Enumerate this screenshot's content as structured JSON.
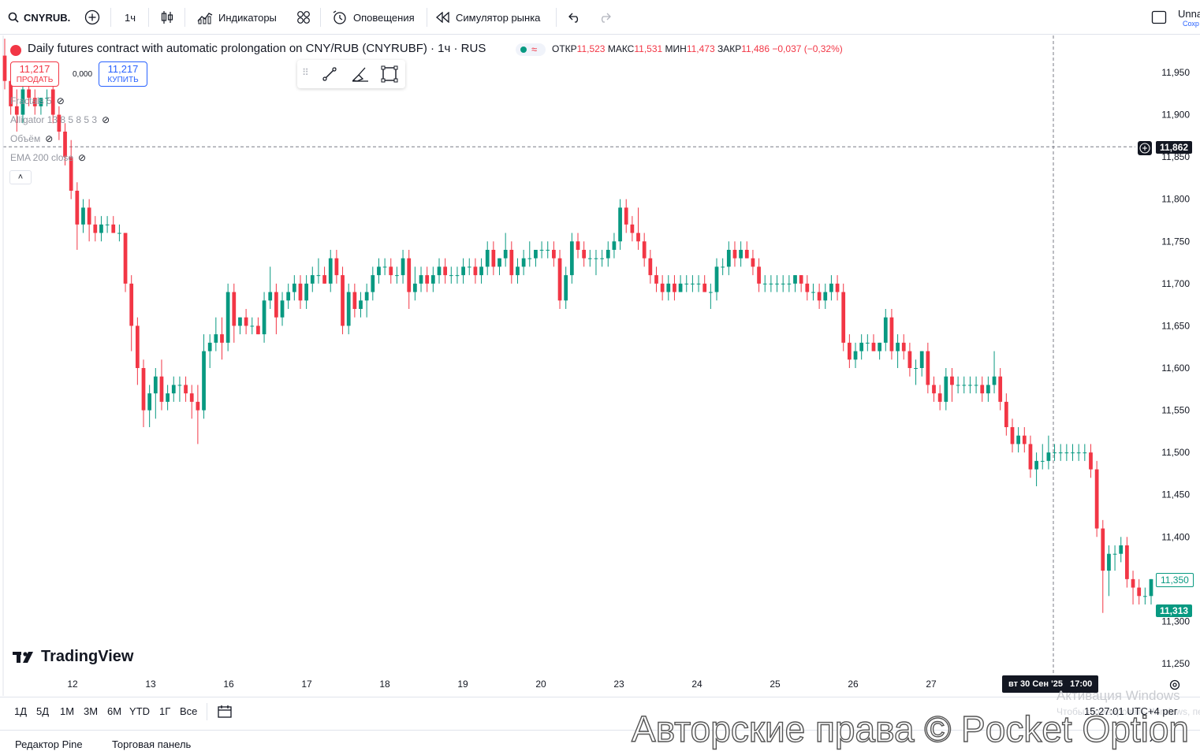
{
  "toolbar": {
    "symbol": "CNYRUB.",
    "interval": "1ч",
    "indicators": "Индикаторы",
    "alerts": "Оповещения",
    "replay": "Симулятор рынка",
    "layout_name": "Unna",
    "layout_save": "Сохр"
  },
  "legend": {
    "title": "Daily futures contract with automatic prolongation on CNY/RUB (CNYRUBF) · 1ч · RUS",
    "open_label": "ОТКР",
    "open": "11,523",
    "high_label": "МАКС",
    "high": "11,531",
    "low_label": "МИН",
    "low": "11,473",
    "close_label": "ЗАКР",
    "close": "11,486",
    "change": "−0,037 (−0,32%)"
  },
  "trade": {
    "sell_price": "11,217",
    "sell_label": "ПРОДАТЬ",
    "buy_price": "11,217",
    "buy_label": "КУПИТЬ",
    "spread": "0,000"
  },
  "indicators": [
    {
      "name": "Fractals 5"
    },
    {
      "name": "Alligator 13 8 5 8 5 3"
    },
    {
      "name": "Объём"
    },
    {
      "name": "EMA 200 close"
    }
  ],
  "price_axis": [
    "11,950",
    "11,900",
    "11,850",
    "11,800",
    "11,750",
    "11,700",
    "11,650",
    "11,600",
    "11,550",
    "11,500",
    "11,450",
    "11,400",
    "11,350",
    "11,300",
    "11,250"
  ],
  "crosshair_price": "11,862",
  "last_price": "11,313",
  "prev_close_price": "11,350",
  "time_axis": [
    "12",
    "13",
    "16",
    "17",
    "18",
    "19",
    "20",
    "23",
    "24",
    "25",
    "26",
    "27"
  ],
  "crosshair_time": "вт 30 Сен '25   17:00",
  "ranges": [
    "1Д",
    "5Д",
    "1М",
    "3М",
    "6М",
    "YTD",
    "1Г",
    "Все"
  ],
  "footer_tabs": [
    "Редактор Pine",
    "Торговая панель"
  ],
  "clock": "15:27:01 UTC+4",
  "clock_suffix": "рег",
  "brand": "TradingView",
  "windows_activation": "Активация Windows",
  "windows_activation_hint": "Чтобы активировать Windows, перейдите",
  "watermark": "Авторские права © Pocket Option",
  "colors": {
    "up": "#089981",
    "down": "#f23645",
    "accent": "#2962ff"
  },
  "chart_data": {
    "type": "candlestick",
    "ylim": [
      11.22,
      11.98
    ],
    "candles": [
      [
        11.97,
        11.99,
        11.93,
        11.94
      ],
      [
        11.94,
        11.96,
        11.9,
        11.91
      ],
      [
        11.91,
        11.93,
        11.88,
        11.9
      ],
      [
        11.9,
        11.95,
        11.89,
        11.93
      ],
      [
        11.93,
        11.96,
        11.91,
        11.92
      ],
      [
        11.92,
        11.93,
        11.9,
        11.91
      ],
      [
        11.91,
        11.92,
        11.9,
        11.92
      ],
      [
        11.92,
        11.93,
        11.91,
        11.92
      ],
      [
        11.93,
        11.94,
        11.89,
        11.9
      ],
      [
        11.9,
        11.91,
        11.87,
        11.88
      ],
      [
        11.88,
        11.89,
        11.84,
        11.85
      ],
      [
        11.85,
        11.87,
        11.8,
        11.81
      ],
      [
        11.81,
        11.82,
        11.74,
        11.77
      ],
      [
        11.77,
        11.8,
        11.76,
        11.79
      ],
      [
        11.79,
        11.8,
        11.75,
        11.77
      ],
      [
        11.77,
        11.78,
        11.75,
        11.76
      ],
      [
        11.76,
        11.78,
        11.75,
        11.77
      ],
      [
        11.77,
        11.78,
        11.76,
        11.77
      ],
      [
        11.77,
        11.78,
        11.76,
        11.76
      ],
      [
        11.76,
        11.77,
        11.75,
        11.76
      ],
      [
        11.76,
        11.76,
        11.69,
        11.7
      ],
      [
        11.7,
        11.71,
        11.62,
        11.65
      ],
      [
        11.65,
        11.66,
        11.58,
        11.6
      ],
      [
        11.6,
        11.61,
        11.53,
        11.55
      ],
      [
        11.55,
        11.58,
        11.53,
        11.57
      ],
      [
        11.57,
        11.6,
        11.54,
        11.59
      ],
      [
        11.59,
        11.61,
        11.55,
        11.56
      ],
      [
        11.56,
        11.58,
        11.55,
        11.57
      ],
      [
        11.57,
        11.59,
        11.56,
        11.58
      ],
      [
        11.58,
        11.59,
        11.56,
        11.58
      ],
      [
        11.58,
        11.59,
        11.56,
        11.57
      ],
      [
        11.57,
        11.58,
        11.54,
        11.56
      ],
      [
        11.56,
        11.58,
        11.51,
        11.55
      ],
      [
        11.55,
        11.64,
        11.54,
        11.62
      ],
      [
        11.62,
        11.64,
        11.6,
        11.63
      ],
      [
        11.63,
        11.66,
        11.62,
        11.64
      ],
      [
        11.64,
        11.66,
        11.61,
        11.63
      ],
      [
        11.63,
        11.7,
        11.62,
        11.69
      ],
      [
        11.69,
        11.7,
        11.63,
        11.65
      ],
      [
        11.65,
        11.66,
        11.64,
        11.66
      ],
      [
        11.66,
        11.67,
        11.64,
        11.65
      ],
      [
        11.65,
        11.66,
        11.64,
        11.65
      ],
      [
        11.65,
        11.66,
        11.64,
        11.64
      ],
      [
        11.64,
        11.69,
        11.63,
        11.68
      ],
      [
        11.68,
        11.72,
        11.67,
        11.69
      ],
      [
        11.69,
        11.7,
        11.64,
        11.66
      ],
      [
        11.66,
        11.69,
        11.65,
        11.68
      ],
      [
        11.68,
        11.7,
        11.67,
        11.69
      ],
      [
        11.69,
        11.71,
        11.68,
        11.7
      ],
      [
        11.7,
        11.71,
        11.67,
        11.68
      ],
      [
        11.68,
        11.71,
        11.67,
        11.7
      ],
      [
        11.7,
        11.72,
        11.69,
        11.71
      ],
      [
        11.71,
        11.73,
        11.7,
        11.71
      ],
      [
        11.71,
        11.72,
        11.7,
        11.7
      ],
      [
        11.7,
        11.74,
        11.69,
        11.73
      ],
      [
        11.73,
        11.74,
        11.7,
        11.71
      ],
      [
        11.71,
        11.72,
        11.64,
        11.65
      ],
      [
        11.65,
        11.7,
        11.64,
        11.69
      ],
      [
        11.69,
        11.7,
        11.66,
        11.67
      ],
      [
        11.67,
        11.69,
        11.66,
        11.68
      ],
      [
        11.68,
        11.7,
        11.66,
        11.69
      ],
      [
        11.69,
        11.72,
        11.68,
        11.71
      ],
      [
        11.71,
        11.73,
        11.7,
        11.72
      ],
      [
        11.72,
        11.73,
        11.71,
        11.72
      ],
      [
        11.72,
        11.73,
        11.7,
        11.71
      ],
      [
        11.71,
        11.72,
        11.7,
        11.71
      ],
      [
        11.71,
        11.74,
        11.7,
        11.73
      ],
      [
        11.73,
        11.74,
        11.67,
        11.69
      ],
      [
        11.69,
        11.72,
        11.68,
        11.7
      ],
      [
        11.7,
        11.72,
        11.69,
        11.71
      ],
      [
        11.71,
        11.72,
        11.69,
        11.7
      ],
      [
        11.7,
        11.72,
        11.69,
        11.71
      ],
      [
        11.71,
        11.73,
        11.7,
        11.72
      ],
      [
        11.72,
        11.73,
        11.7,
        11.71
      ],
      [
        11.71,
        11.72,
        11.7,
        11.71
      ],
      [
        11.71,
        11.72,
        11.7,
        11.71
      ],
      [
        11.71,
        11.73,
        11.7,
        11.72
      ],
      [
        11.72,
        11.73,
        11.71,
        11.72
      ],
      [
        11.72,
        11.73,
        11.7,
        11.71
      ],
      [
        11.71,
        11.73,
        11.7,
        11.72
      ],
      [
        11.72,
        11.75,
        11.71,
        11.74
      ],
      [
        11.74,
        11.75,
        11.71,
        11.72
      ],
      [
        11.72,
        11.73,
        11.71,
        11.73
      ],
      [
        11.73,
        11.76,
        11.72,
        11.74
      ],
      [
        11.74,
        11.75,
        11.7,
        11.71
      ],
      [
        11.71,
        11.73,
        11.7,
        11.72
      ],
      [
        11.72,
        11.74,
        11.71,
        11.73
      ],
      [
        11.73,
        11.75,
        11.72,
        11.73
      ],
      [
        11.73,
        11.74,
        11.72,
        11.74
      ],
      [
        11.74,
        11.75,
        11.73,
        11.74
      ],
      [
        11.74,
        11.75,
        11.73,
        11.74
      ],
      [
        11.74,
        11.75,
        11.72,
        11.73
      ],
      [
        11.73,
        11.74,
        11.67,
        11.68
      ],
      [
        11.68,
        11.72,
        11.67,
        11.71
      ],
      [
        11.71,
        11.76,
        11.7,
        11.75
      ],
      [
        11.75,
        11.76,
        11.73,
        11.74
      ],
      [
        11.74,
        11.75,
        11.72,
        11.73
      ],
      [
        11.73,
        11.74,
        11.72,
        11.73
      ],
      [
        11.73,
        11.74,
        11.71,
        11.73
      ],
      [
        11.73,
        11.74,
        11.72,
        11.73
      ],
      [
        11.73,
        11.75,
        11.72,
        11.74
      ],
      [
        11.74,
        11.76,
        11.73,
        11.75
      ],
      [
        11.75,
        11.8,
        11.74,
        11.79
      ],
      [
        11.79,
        11.8,
        11.76,
        11.77
      ],
      [
        11.77,
        11.78,
        11.75,
        11.76
      ],
      [
        11.76,
        11.79,
        11.74,
        11.75
      ],
      [
        11.75,
        11.76,
        11.72,
        11.73
      ],
      [
        11.73,
        11.74,
        11.7,
        11.71
      ],
      [
        11.71,
        11.72,
        11.69,
        11.7
      ],
      [
        11.7,
        11.71,
        11.68,
        11.69
      ],
      [
        11.69,
        11.71,
        11.68,
        11.7
      ],
      [
        11.7,
        11.71,
        11.68,
        11.69
      ],
      [
        11.69,
        11.71,
        11.69,
        11.7
      ],
      [
        11.7,
        11.71,
        11.69,
        11.7
      ],
      [
        11.7,
        11.71,
        11.69,
        11.7
      ],
      [
        11.7,
        11.71,
        11.69,
        11.7
      ],
      [
        11.7,
        11.71,
        11.69,
        11.69
      ],
      [
        11.69,
        11.7,
        11.67,
        11.69
      ],
      [
        11.69,
        11.73,
        11.68,
        11.72
      ],
      [
        11.72,
        11.73,
        11.71,
        11.72
      ],
      [
        11.72,
        11.75,
        11.71,
        11.74
      ],
      [
        11.74,
        11.75,
        11.72,
        11.73
      ],
      [
        11.73,
        11.75,
        11.72,
        11.74
      ],
      [
        11.74,
        11.75,
        11.73,
        11.73
      ],
      [
        11.73,
        11.74,
        11.71,
        11.72
      ],
      [
        11.72,
        11.73,
        11.69,
        11.7
      ],
      [
        11.7,
        11.71,
        11.69,
        11.7
      ],
      [
        11.7,
        11.71,
        11.69,
        11.7
      ],
      [
        11.7,
        11.71,
        11.69,
        11.7
      ],
      [
        11.7,
        11.71,
        11.69,
        11.7
      ],
      [
        11.7,
        11.71,
        11.69,
        11.7
      ],
      [
        11.7,
        11.71,
        11.69,
        11.71
      ],
      [
        11.71,
        11.71,
        11.69,
        11.7
      ],
      [
        11.7,
        11.71,
        11.68,
        11.69
      ],
      [
        11.69,
        11.7,
        11.68,
        11.69
      ],
      [
        11.69,
        11.7,
        11.67,
        11.68
      ],
      [
        11.68,
        11.7,
        11.67,
        11.69
      ],
      [
        11.69,
        11.71,
        11.68,
        11.7
      ],
      [
        11.7,
        11.71,
        11.68,
        11.69
      ],
      [
        11.69,
        11.7,
        11.62,
        11.63
      ],
      [
        11.63,
        11.64,
        11.6,
        11.61
      ],
      [
        11.61,
        11.63,
        11.6,
        11.62
      ],
      [
        11.62,
        11.64,
        11.61,
        11.63
      ],
      [
        11.63,
        11.64,
        11.62,
        11.63
      ],
      [
        11.63,
        11.64,
        11.62,
        11.62
      ],
      [
        11.62,
        11.63,
        11.61,
        11.63
      ],
      [
        11.63,
        11.67,
        11.62,
        11.66
      ],
      [
        11.66,
        11.67,
        11.61,
        11.62
      ],
      [
        11.62,
        11.64,
        11.6,
        11.63
      ],
      [
        11.63,
        11.64,
        11.61,
        11.62
      ],
      [
        11.62,
        11.63,
        11.59,
        11.6
      ],
      [
        11.6,
        11.61,
        11.58,
        11.6
      ],
      [
        11.6,
        11.62,
        11.59,
        11.62
      ],
      [
        11.62,
        11.63,
        11.57,
        11.58
      ],
      [
        11.58,
        11.59,
        11.56,
        11.57
      ],
      [
        11.57,
        11.58,
        11.55,
        11.56
      ],
      [
        11.56,
        11.6,
        11.55,
        11.59
      ],
      [
        11.59,
        11.6,
        11.56,
        11.58
      ],
      [
        11.58,
        11.59,
        11.57,
        11.58
      ],
      [
        11.58,
        11.59,
        11.57,
        11.58
      ],
      [
        11.58,
        11.59,
        11.57,
        11.58
      ],
      [
        11.58,
        11.59,
        11.57,
        11.58
      ],
      [
        11.58,
        11.59,
        11.56,
        11.57
      ],
      [
        11.57,
        11.59,
        11.56,
        11.58
      ],
      [
        11.58,
        11.62,
        11.57,
        11.59
      ],
      [
        11.59,
        11.6,
        11.55,
        11.56
      ],
      [
        11.56,
        11.57,
        11.52,
        11.53
      ],
      [
        11.53,
        11.54,
        11.5,
        11.51
      ],
      [
        11.51,
        11.53,
        11.5,
        11.52
      ],
      [
        11.52,
        11.53,
        11.5,
        11.51
      ],
      [
        11.51,
        11.52,
        11.47,
        11.48
      ],
      [
        11.48,
        11.5,
        11.46,
        11.49
      ],
      [
        11.49,
        11.51,
        11.48,
        11.49
      ],
      [
        11.49,
        11.52,
        11.48,
        11.5
      ],
      [
        11.5,
        11.51,
        11.49,
        11.5
      ],
      [
        11.5,
        11.51,
        11.49,
        11.5
      ],
      [
        11.5,
        11.51,
        11.49,
        11.5
      ],
      [
        11.5,
        11.51,
        11.49,
        11.5
      ],
      [
        11.5,
        11.51,
        11.49,
        11.5
      ],
      [
        11.5,
        11.51,
        11.49,
        11.5
      ],
      [
        11.5,
        11.51,
        11.47,
        11.48
      ],
      [
        11.48,
        11.49,
        11.4,
        11.41
      ],
      [
        11.41,
        11.42,
        11.31,
        11.36
      ],
      [
        11.36,
        11.39,
        11.33,
        11.38
      ],
      [
        11.38,
        11.39,
        11.36,
        11.38
      ],
      [
        11.38,
        11.4,
        11.37,
        11.39
      ],
      [
        11.39,
        11.4,
        11.34,
        11.35
      ],
      [
        11.35,
        11.36,
        11.32,
        11.34
      ],
      [
        11.34,
        11.35,
        11.32,
        11.33
      ],
      [
        11.33,
        11.34,
        11.32,
        11.33
      ],
      [
        11.33,
        11.35,
        11.32,
        11.35
      ]
    ]
  }
}
